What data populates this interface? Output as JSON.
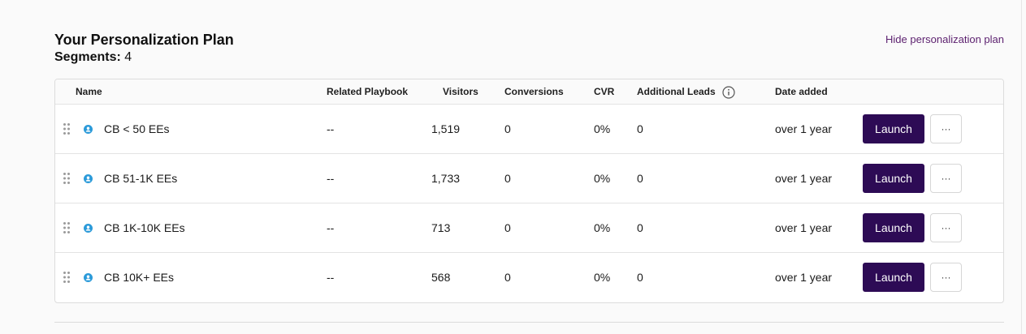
{
  "header": {
    "title": "Your Personalization Plan",
    "segments_label": "Segments:",
    "segments_count": "4",
    "hide_link": "Hide personalization plan"
  },
  "table": {
    "columns": {
      "name": "Name",
      "playbook": "Related Playbook",
      "visitors": "Visitors",
      "conversions": "Conversions",
      "cvr": "CVR",
      "additional_leads": "Additional Leads",
      "date_added": "Date added"
    },
    "rows": [
      {
        "name": "CB < 50 EEs",
        "playbook": "--",
        "visitors": "1,519",
        "conversions": "0",
        "cvr": "0%",
        "additional_leads": "0",
        "date_added": "over 1 year",
        "launch": "Launch",
        "more": "···"
      },
      {
        "name": "CB 51-1K EEs",
        "playbook": "--",
        "visitors": "1,733",
        "conversions": "0",
        "cvr": "0%",
        "additional_leads": "0",
        "date_added": "over 1 year",
        "launch": "Launch",
        "more": "···"
      },
      {
        "name": "CB 1K-10K EEs",
        "playbook": "--",
        "visitors": "713",
        "conversions": "0",
        "cvr": "0%",
        "additional_leads": "0",
        "date_added": "over 1 year",
        "launch": "Launch",
        "more": "···"
      },
      {
        "name": "CB 10K+ EEs",
        "playbook": "--",
        "visitors": "568",
        "conversions": "0",
        "cvr": "0%",
        "additional_leads": "0",
        "date_added": "over 1 year",
        "launch": "Launch",
        "more": "···"
      }
    ]
  },
  "icons": {
    "drag_handle": "drag-handle-icon",
    "segment": "person-icon",
    "info": "info-icon"
  },
  "colors": {
    "launch_button": "#2d0b55",
    "link": "#5b1f6e",
    "segment_icon": "#2b9ad9"
  }
}
